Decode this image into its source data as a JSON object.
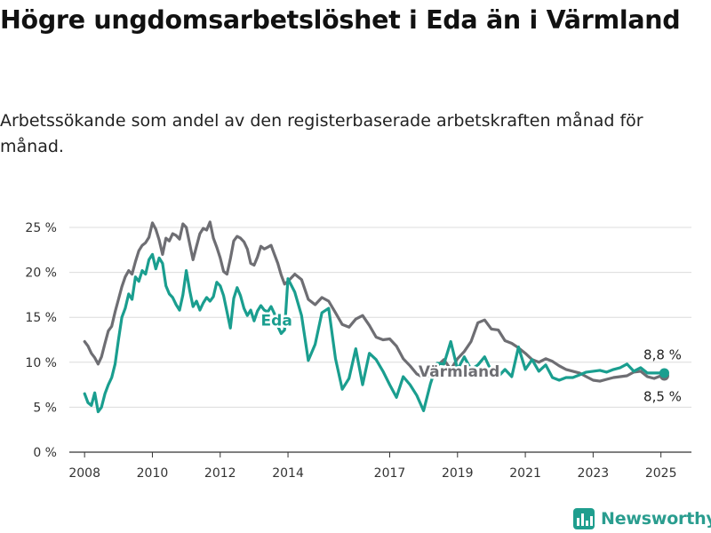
{
  "title": "Högre ungdomsarbetslöshet i Eda än i Värmland",
  "subtitle": "Arbetssökande som andel av den registerbaserade arbetskraften månad för månad.",
  "brand": {
    "name": "Newsworthy",
    "color": "#2a9d8f"
  },
  "chart_data": {
    "type": "line",
    "title": "Högre ungdomsarbetslöshet i Eda än i Värmland",
    "subtitle": "Arbetssökande som andel av den registerbaserade arbetskraften månad för månad.",
    "xlabel": "",
    "ylabel": "",
    "ylim": [
      0,
      25
    ],
    "y_ticks": [
      0,
      5,
      10,
      15,
      20,
      25
    ],
    "y_tick_labels": [
      "0 %",
      "5 %",
      "10 %",
      "15 %",
      "20 %",
      "25 %"
    ],
    "x_tick_labels": [
      "2008",
      "2010",
      "2012",
      "2014",
      "2017",
      "2019",
      "2021",
      "2023",
      "2025"
    ],
    "x_tick_values": [
      2008.0,
      2010.0,
      2012.0,
      2014.0,
      2017.0,
      2019.0,
      2021.0,
      2023.0,
      2025.0
    ],
    "grid": "horizontal",
    "series": [
      {
        "name": "Värmland",
        "color": "#6e6e73",
        "end_label": "8,5 %",
        "x": [
          2008.0,
          2008.1,
          2008.2,
          2008.3,
          2008.4,
          2008.5,
          2008.6,
          2008.7,
          2008.8,
          2008.9,
          2009.0,
          2009.1,
          2009.2,
          2009.3,
          2009.4,
          2009.5,
          2009.6,
          2009.7,
          2009.8,
          2009.9,
          2010.0,
          2010.1,
          2010.2,
          2010.3,
          2010.4,
          2010.5,
          2010.6,
          2010.7,
          2010.8,
          2010.9,
          2011.0,
          2011.1,
          2011.2,
          2011.3,
          2011.4,
          2011.5,
          2011.6,
          2011.7,
          2011.8,
          2011.9,
          2012.0,
          2012.1,
          2012.2,
          2012.3,
          2012.4,
          2012.5,
          2012.6,
          2012.7,
          2012.8,
          2012.9,
          2013.0,
          2013.1,
          2013.2,
          2013.3,
          2013.4,
          2013.5,
          2013.6,
          2013.7,
          2013.8,
          2013.9,
          2014.0,
          2014.2,
          2014.4,
          2014.6,
          2014.8,
          2015.0,
          2015.2,
          2015.4,
          2015.6,
          2015.8,
          2016.0,
          2016.2,
          2016.4,
          2016.6,
          2016.8,
          2017.0,
          2017.2,
          2017.4,
          2017.6,
          2017.8,
          2018.0,
          2018.2,
          2018.4,
          2018.6,
          2018.8,
          2019.0,
          2019.2,
          2019.4,
          2019.6,
          2019.8,
          2020.0,
          2020.2,
          2020.4,
          2020.6,
          2020.8,
          2021.0,
          2021.2,
          2021.4,
          2021.6,
          2021.8,
          2022.0,
          2022.2,
          2022.4,
          2022.6,
          2022.8,
          2023.0,
          2023.2,
          2023.4,
          2023.6,
          2023.8,
          2024.0,
          2024.2,
          2024.4,
          2024.6,
          2024.8,
          2025.0,
          2025.1
        ],
        "values": [
          12.3,
          11.8,
          11.0,
          10.5,
          9.8,
          10.6,
          12.1,
          13.5,
          14.0,
          15.6,
          17.0,
          18.4,
          19.5,
          20.2,
          19.8,
          21.2,
          22.4,
          23.0,
          23.3,
          23.9,
          25.5,
          24.8,
          23.6,
          22.0,
          23.8,
          23.5,
          24.3,
          24.1,
          23.7,
          25.4,
          25.0,
          23.2,
          21.4,
          22.9,
          24.3,
          24.9,
          24.7,
          25.6,
          23.8,
          22.8,
          21.6,
          20.1,
          19.8,
          21.5,
          23.5,
          24.0,
          23.8,
          23.4,
          22.6,
          21.0,
          20.8,
          21.7,
          22.9,
          22.6,
          22.8,
          23.0,
          22.0,
          21.0,
          19.7,
          18.7,
          19.0,
          19.8,
          19.2,
          17.0,
          16.4,
          17.2,
          16.8,
          15.5,
          14.2,
          13.9,
          14.8,
          15.2,
          14.1,
          12.8,
          12.5,
          12.6,
          11.8,
          10.4,
          9.6,
          8.7,
          8.3,
          8.6,
          9.6,
          10.3,
          9.2,
          10.4,
          11.2,
          12.3,
          14.4,
          14.7,
          13.7,
          13.6,
          12.4,
          12.1,
          11.6,
          11.0,
          10.3,
          10.0,
          10.4,
          10.1,
          9.6,
          9.2,
          9.0,
          8.8,
          8.4,
          8.0,
          7.9,
          8.1,
          8.3,
          8.4,
          8.5,
          8.9,
          9.0,
          8.4,
          8.2,
          8.5,
          8.5
        ]
      },
      {
        "name": "Eda",
        "color": "#1a9e8f",
        "end_label": "8,8 %",
        "x": [
          2008.0,
          2008.1,
          2008.2,
          2008.3,
          2008.4,
          2008.5,
          2008.6,
          2008.7,
          2008.8,
          2008.9,
          2009.0,
          2009.1,
          2009.2,
          2009.3,
          2009.4,
          2009.5,
          2009.6,
          2009.7,
          2009.8,
          2009.9,
          2010.0,
          2010.1,
          2010.2,
          2010.3,
          2010.4,
          2010.5,
          2010.6,
          2010.7,
          2010.8,
          2010.9,
          2011.0,
          2011.1,
          2011.2,
          2011.3,
          2011.4,
          2011.5,
          2011.6,
          2011.7,
          2011.8,
          2011.9,
          2012.0,
          2012.1,
          2012.2,
          2012.3,
          2012.4,
          2012.5,
          2012.6,
          2012.7,
          2012.8,
          2012.9,
          2013.0,
          2013.1,
          2013.2,
          2013.3,
          2013.4,
          2013.5,
          2013.6,
          2013.7,
          2013.8,
          2013.9,
          2014.0,
          2014.2,
          2014.4,
          2014.6,
          2014.8,
          2015.0,
          2015.2,
          2015.4,
          2015.6,
          2015.8,
          2016.0,
          2016.2,
          2016.4,
          2016.6,
          2016.8,
          2017.0,
          2017.2,
          2017.4,
          2017.6,
          2017.8,
          2018.0,
          2018.2,
          2018.4,
          2018.6,
          2018.8,
          2019.0,
          2019.2,
          2019.4,
          2019.6,
          2019.8,
          2020.0,
          2020.2,
          2020.4,
          2020.6,
          2020.8,
          2021.0,
          2021.2,
          2021.4,
          2021.6,
          2021.8,
          2022.0,
          2022.2,
          2022.4,
          2022.6,
          2022.8,
          2023.0,
          2023.2,
          2023.4,
          2023.6,
          2023.8,
          2024.0,
          2024.2,
          2024.4,
          2024.6,
          2024.8,
          2025.0,
          2025.1
        ],
        "values": [
          6.5,
          5.5,
          5.2,
          6.6,
          4.5,
          5.0,
          6.5,
          7.5,
          8.3,
          9.8,
          12.5,
          15.0,
          16.0,
          17.6,
          17.0,
          19.5,
          19.0,
          20.2,
          19.8,
          21.4,
          22.0,
          20.4,
          21.6,
          21.0,
          18.5,
          17.6,
          17.2,
          16.4,
          15.8,
          17.5,
          20.2,
          18.0,
          16.2,
          16.8,
          15.8,
          16.6,
          17.2,
          16.8,
          17.3,
          18.9,
          18.5,
          17.4,
          15.6,
          13.8,
          17.1,
          18.3,
          17.4,
          16.0,
          15.2,
          15.8,
          14.6,
          15.7,
          16.3,
          15.8,
          15.6,
          16.2,
          15.4,
          14.0,
          13.2,
          13.6,
          19.3,
          17.8,
          15.2,
          10.2,
          12.0,
          15.5,
          16.0,
          10.4,
          7.0,
          8.2,
          11.5,
          7.5,
          11.0,
          10.3,
          9.0,
          7.5,
          6.1,
          8.4,
          7.5,
          6.3,
          4.6,
          7.6,
          9.9,
          9.8,
          12.3,
          9.2,
          10.6,
          9.2,
          9.7,
          10.6,
          9.0,
          8.4,
          9.2,
          8.4,
          11.7,
          9.2,
          10.3,
          9.0,
          9.7,
          8.3,
          8.0,
          8.3,
          8.3,
          8.6,
          8.9,
          9.0,
          9.1,
          8.9,
          9.2,
          9.4,
          9.8,
          9.0,
          9.4,
          8.8,
          8.8,
          8.8,
          8.8
        ]
      }
    ]
  }
}
